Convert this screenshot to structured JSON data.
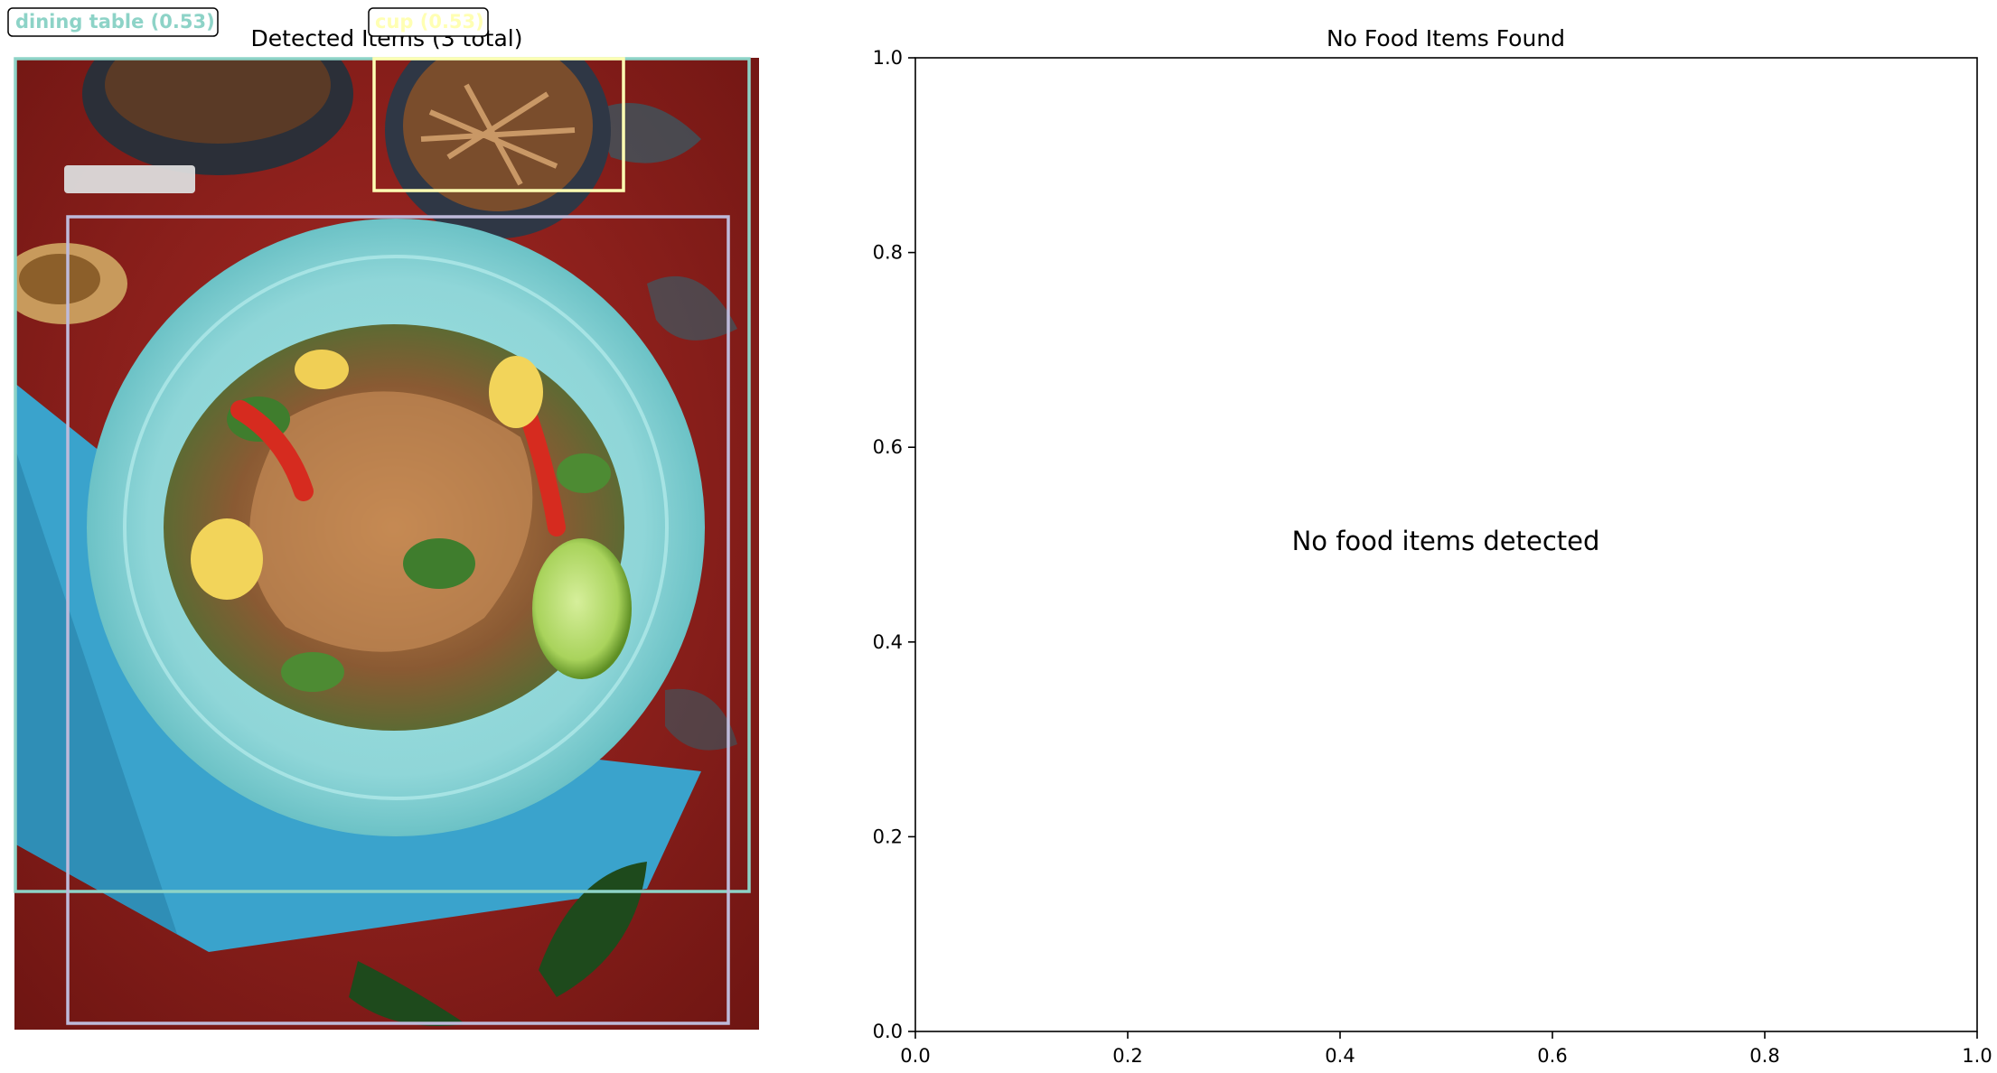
{
  "left_panel": {
    "title": "Detected Items (3 total)",
    "detections": [
      {
        "label": "dining table (0.53)",
        "color": "#8dd3c7"
      },
      {
        "label": "cup (0.53)",
        "color": "#ffffb3"
      },
      {
        "label": "",
        "color": "#bebada"
      }
    ]
  },
  "right_panel": {
    "title": "No Food Items Found",
    "message": "No food items detected"
  },
  "chart_data": {
    "type": "scatter",
    "title": "No Food Items Found",
    "xlabel": "",
    "ylabel": "",
    "xlim": [
      0.0,
      1.0
    ],
    "ylim": [
      0.0,
      1.0
    ],
    "x_ticks": [
      "0.0",
      "0.2",
      "0.4",
      "0.6",
      "0.8",
      "1.0"
    ],
    "y_ticks": [
      "0.0",
      "0.2",
      "0.4",
      "0.6",
      "0.8",
      "1.0"
    ],
    "series": [],
    "annotation": "No food items detected",
    "grid": false
  }
}
